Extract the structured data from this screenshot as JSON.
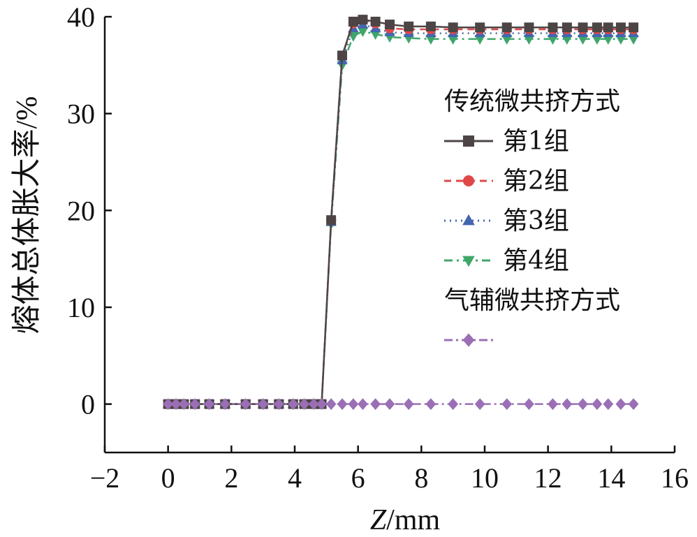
{
  "chart_data": {
    "type": "line",
    "xlabel_italic": "Z",
    "xlabel_rest": "/mm",
    "ylabel": "熔体总体胀大率/%",
    "xlim": [
      -2,
      16
    ],
    "ylim": [
      -5,
      40
    ],
    "x_ticks": [
      -2,
      0,
      2,
      4,
      6,
      8,
      10,
      12,
      14,
      16
    ],
    "x_tick_labels": [
      "−2",
      "0",
      "2",
      "4",
      "6",
      "8",
      "10",
      "12",
      "14",
      "16"
    ],
    "y_ticks": [
      0,
      10,
      20,
      30,
      40
    ],
    "y_tick_labels": [
      "0",
      "10",
      "20",
      "30",
      "40"
    ],
    "legend_position": "right",
    "legend_groups": [
      {
        "title": "传统微共挤方式",
        "series_indices": [
          0,
          1,
          2,
          3
        ]
      },
      {
        "title": "气辅微共挤方式",
        "series_indices": [
          4
        ]
      }
    ],
    "series": [
      {
        "name": "第1组",
        "color": "#4d4545",
        "marker": "square",
        "dash": "",
        "x": [
          0,
          0.25,
          0.5,
          0.85,
          1.3,
          1.8,
          2.45,
          3.0,
          3.5,
          3.95,
          4.3,
          4.6,
          4.85,
          5.15,
          5.5,
          5.85,
          6.15,
          6.55,
          7.0,
          7.6,
          8.3,
          9.0,
          9.85,
          10.7,
          11.4,
          12.15,
          12.6,
          13.1,
          13.55,
          13.9,
          14.3,
          14.7
        ],
        "y": [
          0,
          0,
          0,
          0,
          0,
          0,
          0,
          0,
          0,
          0,
          0,
          0,
          0,
          19,
          36,
          39.5,
          39.7,
          39.5,
          39.2,
          39.0,
          39.0,
          38.9,
          38.9,
          38.9,
          38.9,
          38.9,
          38.9,
          38.9,
          38.9,
          38.9,
          38.9,
          38.9
        ]
      },
      {
        "name": "第2组",
        "color": "#e04848",
        "marker": "circle",
        "dash": "10,7",
        "x": [
          0,
          0.25,
          0.5,
          0.85,
          1.3,
          1.8,
          2.45,
          3.0,
          3.5,
          3.95,
          4.3,
          4.6,
          4.85,
          5.15,
          5.5,
          5.85,
          6.15,
          6.55,
          7.0,
          7.6,
          8.3,
          9.0,
          9.85,
          10.7,
          11.4,
          12.15,
          12.6,
          13.1,
          13.55,
          13.9,
          14.3,
          14.7
        ],
        "y": [
          0,
          0,
          0,
          0,
          0,
          0,
          0,
          0,
          0,
          0,
          0,
          0,
          0,
          19,
          36,
          39.3,
          39.7,
          39.3,
          38.8,
          38.7,
          38.7,
          38.7,
          38.7,
          38.7,
          38.7,
          38.7,
          38.7,
          38.7,
          38.7,
          38.7,
          38.7,
          38.7
        ]
      },
      {
        "name": "第3组",
        "color": "#4466b0",
        "marker": "triangle-up",
        "dash": "2,6",
        "x": [
          0,
          0.25,
          0.5,
          0.85,
          1.3,
          1.8,
          2.45,
          3.0,
          3.5,
          3.95,
          4.3,
          4.6,
          4.85,
          5.15,
          5.5,
          5.85,
          6.15,
          6.55,
          7.0,
          7.6,
          8.3,
          9.0,
          9.85,
          10.7,
          11.4,
          12.15,
          12.6,
          13.1,
          13.55,
          13.9,
          14.3,
          14.7
        ],
        "y": [
          0,
          0,
          0,
          0,
          0,
          0,
          0,
          0,
          0,
          0,
          0,
          0,
          0,
          18.8,
          35.5,
          38.8,
          39.2,
          38.8,
          38.4,
          38.3,
          38.3,
          38.3,
          38.3,
          38.3,
          38.3,
          38.3,
          38.3,
          38.3,
          38.3,
          38.3,
          38.3,
          38.3
        ]
      },
      {
        "name": "第4组",
        "color": "#3fa66a",
        "marker": "triangle-down",
        "dash": "12,6,3,6",
        "x": [
          0,
          0.25,
          0.5,
          0.85,
          1.3,
          1.8,
          2.45,
          3.0,
          3.5,
          3.95,
          4.3,
          4.6,
          4.85,
          5.15,
          5.5,
          5.85,
          6.15,
          6.55,
          7.0,
          7.6,
          8.3,
          9.0,
          9.85,
          10.7,
          11.4,
          12.15,
          12.6,
          13.1,
          13.55,
          13.9,
          14.3,
          14.7
        ],
        "y": [
          0,
          0,
          0,
          0,
          0,
          0,
          0,
          0,
          0,
          0,
          0,
          0,
          0,
          18.6,
          35.0,
          38.0,
          38.5,
          38.2,
          37.9,
          37.8,
          37.7,
          37.7,
          37.7,
          37.7,
          37.7,
          37.7,
          37.7,
          37.7,
          37.7,
          37.7,
          37.7,
          37.7
        ]
      },
      {
        "name": "",
        "color": "#9a6fb5",
        "marker": "diamond",
        "dash": "12,5,3,5",
        "x": [
          0,
          0.25,
          0.5,
          0.85,
          1.3,
          1.8,
          2.45,
          3.0,
          3.5,
          3.95,
          4.3,
          4.6,
          4.85,
          5.15,
          5.5,
          5.85,
          6.15,
          6.55,
          7.0,
          7.6,
          8.3,
          9.0,
          9.85,
          10.7,
          11.4,
          12.15,
          12.6,
          13.1,
          13.55,
          13.9,
          14.3,
          14.7
        ],
        "y": [
          0,
          0,
          0,
          0,
          0,
          0,
          0,
          0,
          0,
          0,
          0,
          0,
          0,
          0,
          0,
          0,
          0,
          0,
          0,
          0,
          0,
          0,
          0,
          0,
          0,
          0,
          0,
          0,
          0,
          0,
          0,
          0
        ]
      }
    ]
  }
}
